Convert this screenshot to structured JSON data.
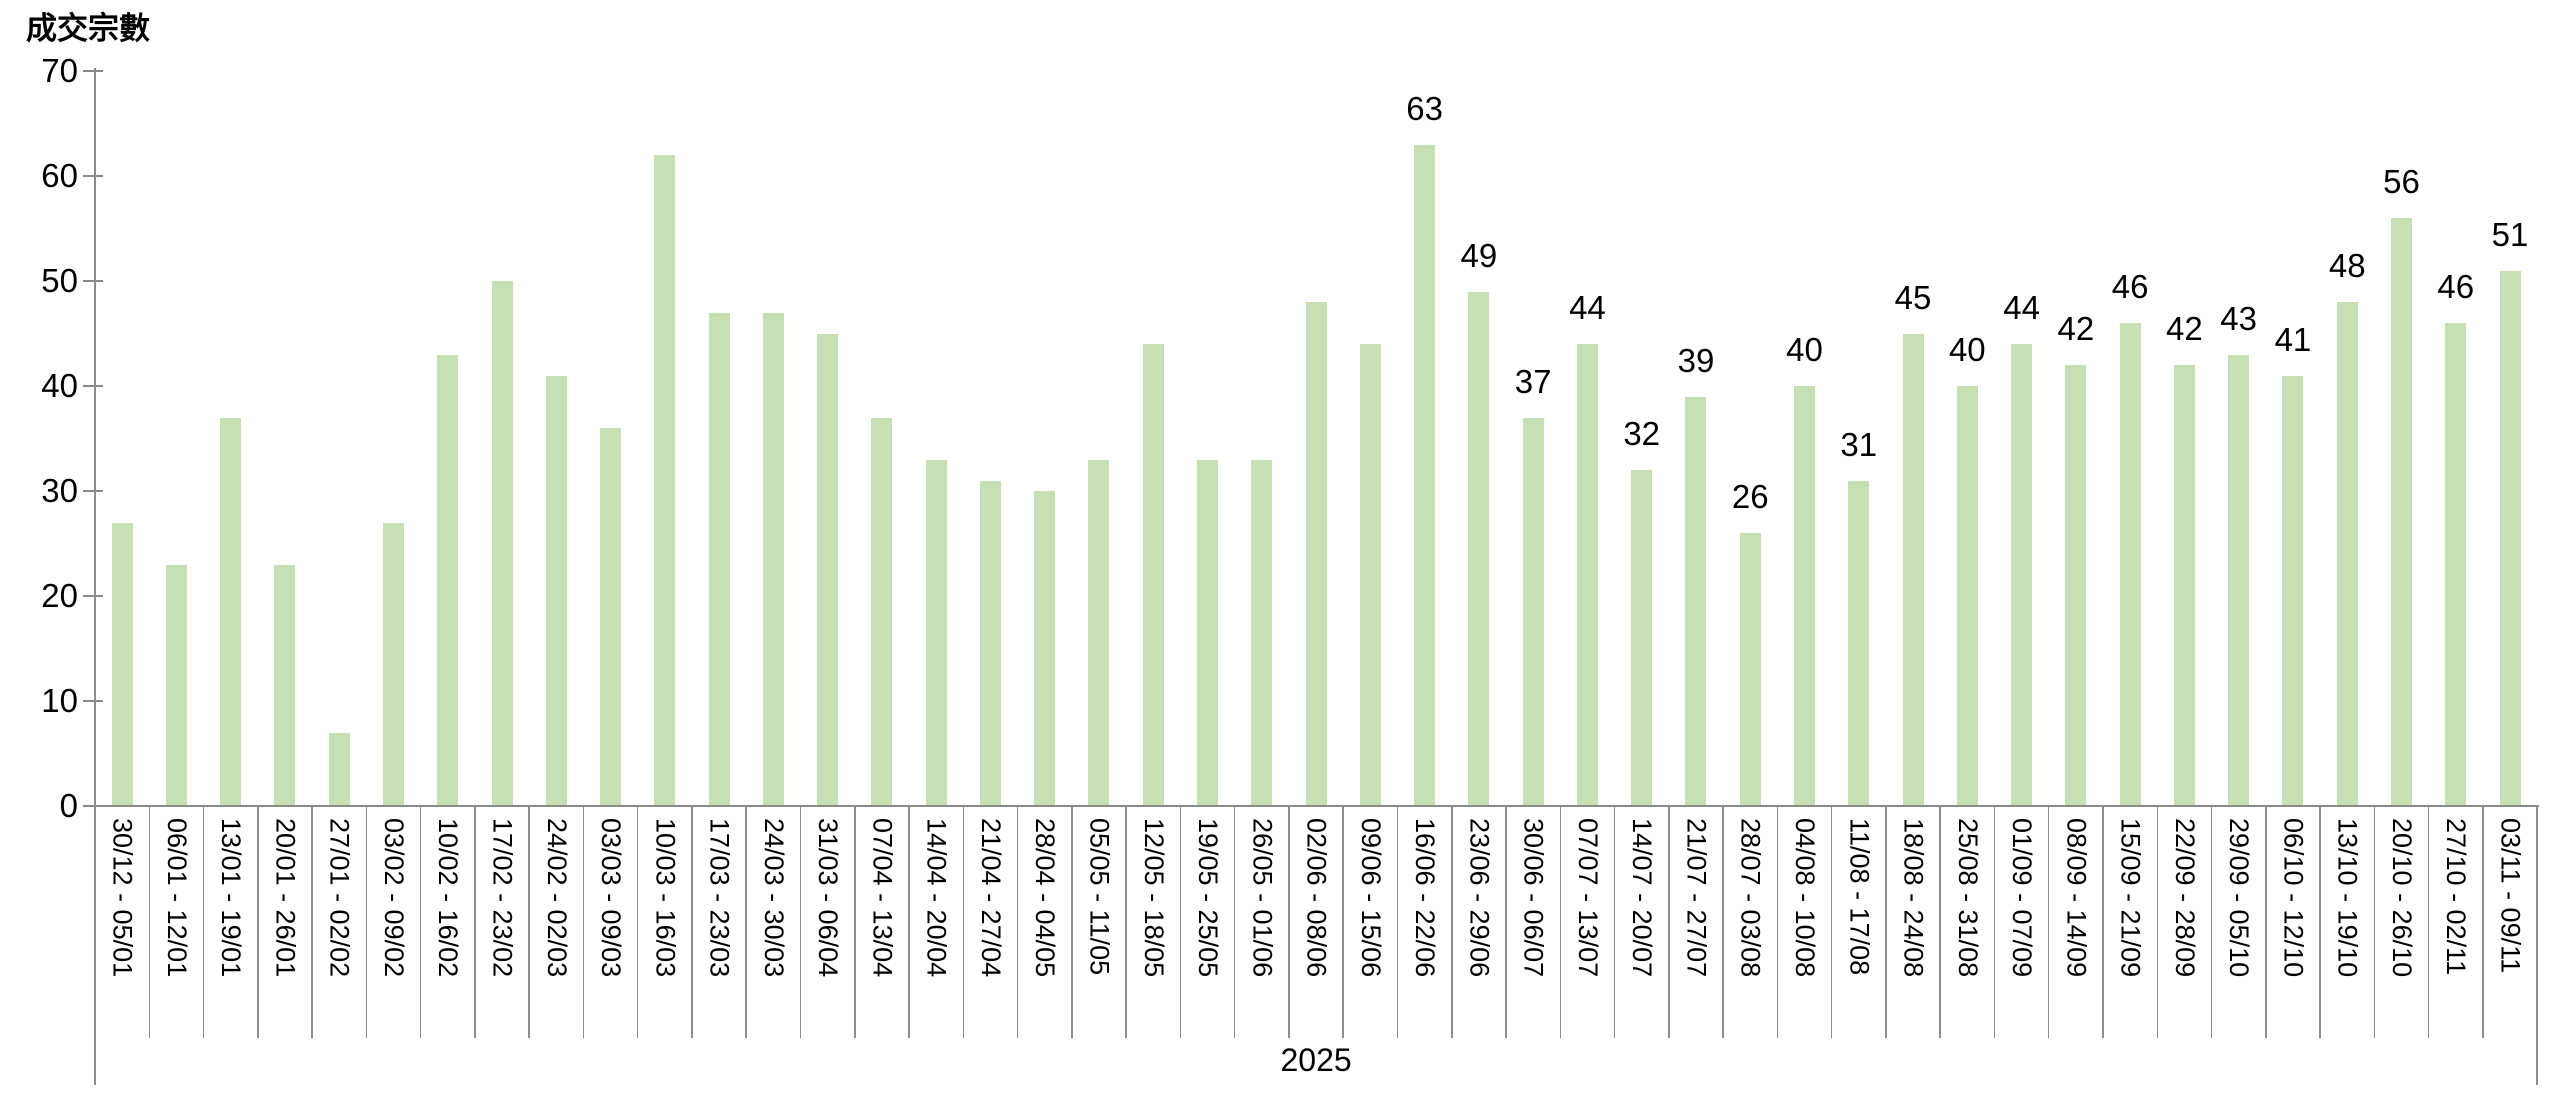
{
  "chart": {
    "y_axis_title": "成交宗數",
    "x_group_label": "2025"
  },
  "chart_data": {
    "type": "bar",
    "title": "",
    "ylabel": "成交宗數",
    "xlabel": "2025",
    "ylim": [
      0,
      70
    ],
    "y_ticks": [
      0,
      10,
      20,
      30,
      40,
      50,
      60,
      70
    ],
    "grid": false,
    "legend": false,
    "bar_color": "#c6e0b4",
    "axis_color": "#8a8a8a",
    "label_color": "#000000",
    "data_labels_from_index": 24,
    "categories": [
      "30/12 - 05/01",
      "06/01 - 12/01",
      "13/01 - 19/01",
      "20/01 - 26/01",
      "27/01 - 02/02",
      "03/02 - 09/02",
      "10/02 - 16/02",
      "17/02 - 23/02",
      "24/02 - 02/03",
      "03/03 - 09/03",
      "10/03 - 16/03",
      "17/03 - 23/03",
      "24/03 - 30/03",
      "31/03 - 06/04",
      "07/04 - 13/04",
      "14/04 - 20/04",
      "21/04 - 27/04",
      "28/04 - 04/05",
      "05/05 - 11/05",
      "12/05 - 18/05",
      "19/05 - 25/05",
      "26/05 - 01/06",
      "02/06 - 08/06",
      "09/06 - 15/06",
      "16/06 - 22/06",
      "23/06 - 29/06",
      "30/06 - 06/07",
      "07/07 - 13/07",
      "14/07 - 20/07",
      "21/07 - 27/07",
      "28/07 - 03/08",
      "04/08 - 10/08",
      "11/08 - 17/08",
      "18/08 - 24/08",
      "25/08 - 31/08",
      "01/09 - 07/09",
      "08/09 - 14/09",
      "15/09 - 21/09",
      "22/09 - 28/09",
      "29/09 - 05/10",
      "06/10 - 12/10",
      "13/10 - 19/10",
      "20/10 - 26/10",
      "27/10 - 02/11",
      "03/11 - 09/11"
    ],
    "values": [
      27,
      23,
      37,
      23,
      7,
      27,
      43,
      50,
      41,
      36,
      62,
      47,
      47,
      45,
      37,
      33,
      31,
      30,
      33,
      44,
      33,
      33,
      48,
      44,
      63,
      49,
      37,
      44,
      32,
      39,
      26,
      40,
      31,
      45,
      40,
      44,
      42,
      46,
      42,
      43,
      41,
      48,
      56,
      46,
      51
    ]
  }
}
